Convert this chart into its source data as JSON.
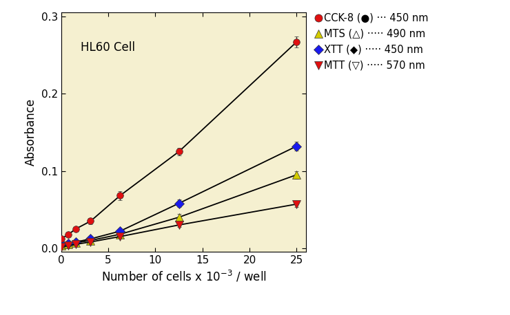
{
  "x_values": [
    0,
    0.781,
    1.563,
    3.125,
    6.25,
    12.5,
    25
  ],
  "cck8_y": [
    0.012,
    0.018,
    0.025,
    0.035,
    0.068,
    0.125,
    0.267
  ],
  "cck8_err": [
    0.002,
    0.002,
    0.002,
    0.004,
    0.006,
    0.005,
    0.007
  ],
  "mts_y": [
    0.003,
    0.005,
    0.007,
    0.01,
    0.018,
    0.04,
    0.095
  ],
  "mts_err": [
    0.001,
    0.001,
    0.001,
    0.002,
    0.003,
    0.004,
    0.005
  ],
  "xtt_y": [
    0.005,
    0.006,
    0.008,
    0.012,
    0.022,
    0.058,
    0.132
  ],
  "xtt_err": [
    0.001,
    0.001,
    0.001,
    0.002,
    0.003,
    0.005,
    0.006
  ],
  "mtt_y": [
    0.002,
    0.003,
    0.005,
    0.008,
    0.015,
    0.03,
    0.057
  ],
  "mtt_err": [
    0.001,
    0.001,
    0.001,
    0.001,
    0.002,
    0.003,
    0.004
  ],
  "cck8_color": "#e01010",
  "mts_color": "#d4cc00",
  "xtt_color": "#1a1aee",
  "mtt_color": "#e01010",
  "bg_color": "#f5f0d0",
  "xlabel": "Number of cells x 10",
  "xlabel_super": "-3",
  "xlabel_suffix": " / well",
  "ylabel": "Absorbance",
  "annotation": "HL60 Cell",
  "xlim": [
    0,
    26
  ],
  "ylim": [
    -0.005,
    0.305
  ],
  "xticks": [
    0,
    5,
    10,
    15,
    20,
    25
  ],
  "yticks": [
    0.0,
    0.1,
    0.2,
    0.3
  ],
  "legend_labels": [
    "CCK-8 (●) ··· 450 nm",
    "MTS (△) ····· 490 nm",
    "XTT (◆) ····· 450 nm",
    "MTT (▽) ····· 570 nm"
  ]
}
